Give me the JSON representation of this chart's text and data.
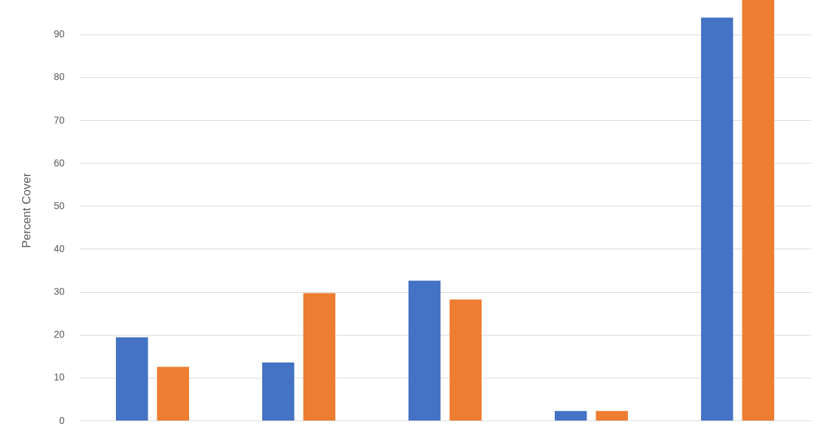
{
  "chart_data": {
    "type": "bar",
    "ylabel": "Percent Cover",
    "categories": [
      null,
      null,
      null,
      null,
      null
    ],
    "series": [
      {
        "color": "#4472c4",
        "values": [
          19.4,
          13.5,
          32.6,
          2.2,
          93.9
        ]
      },
      {
        "color": "#ed7d31",
        "values": [
          12.5,
          29.7,
          28.2,
          2.2,
          98
        ]
      }
    ],
    "ylim": [
      0,
      98
    ],
    "yticks": [
      0,
      10,
      20,
      30,
      40,
      50,
      60,
      70,
      80,
      90
    ],
    "grid": "y",
    "tick_labels": "y"
  }
}
